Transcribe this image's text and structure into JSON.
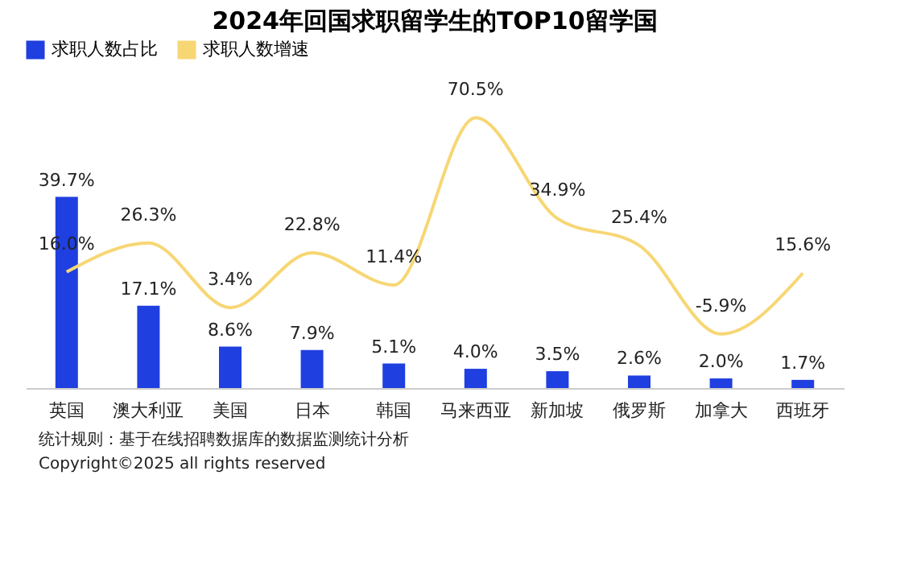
{
  "chart_data": {
    "type": "bar",
    "title": "2024年回国求职留学生的TOP10留学国",
    "categories": [
      "英国",
      "澳大利亚",
      "美国",
      "日本",
      "韩国",
      "马来西亚",
      "新加坡",
      "俄罗斯",
      "加拿大",
      "西班牙"
    ],
    "series": [
      {
        "name": "求职人数占比",
        "color": "#1f3fe0",
        "values": [
          39.7,
          17.1,
          8.6,
          7.9,
          5.1,
          4.0,
          3.5,
          2.6,
          2.0,
          1.7
        ],
        "value_labels": [
          "39.7%",
          "17.1%",
          "8.6%",
          "7.9%",
          "5.1%",
          "4.0%",
          "3.5%",
          "2.6%",
          "2.0%",
          "1.7%"
        ]
      },
      {
        "name": "求职人数增速",
        "type": "line",
        "axis": "y2",
        "color": "#f7d774",
        "values": [
          16.0,
          26.3,
          3.4,
          22.8,
          11.4,
          70.5,
          34.9,
          25.4,
          -5.9,
          15.6
        ],
        "value_labels": [
          "16.0%",
          "26.3%",
          "3.4%",
          "22.8%",
          "11.4%",
          "70.5%",
          "34.9%",
          "25.4%",
          "-5.9%",
          "15.6%"
        ]
      }
    ],
    "legend": "top",
    "grid": false,
    "annotations": [
      "统计规则：基于在线招聘数据库的数据监测统计分析",
      "Copyright©2025 all rights reserved"
    ]
  }
}
